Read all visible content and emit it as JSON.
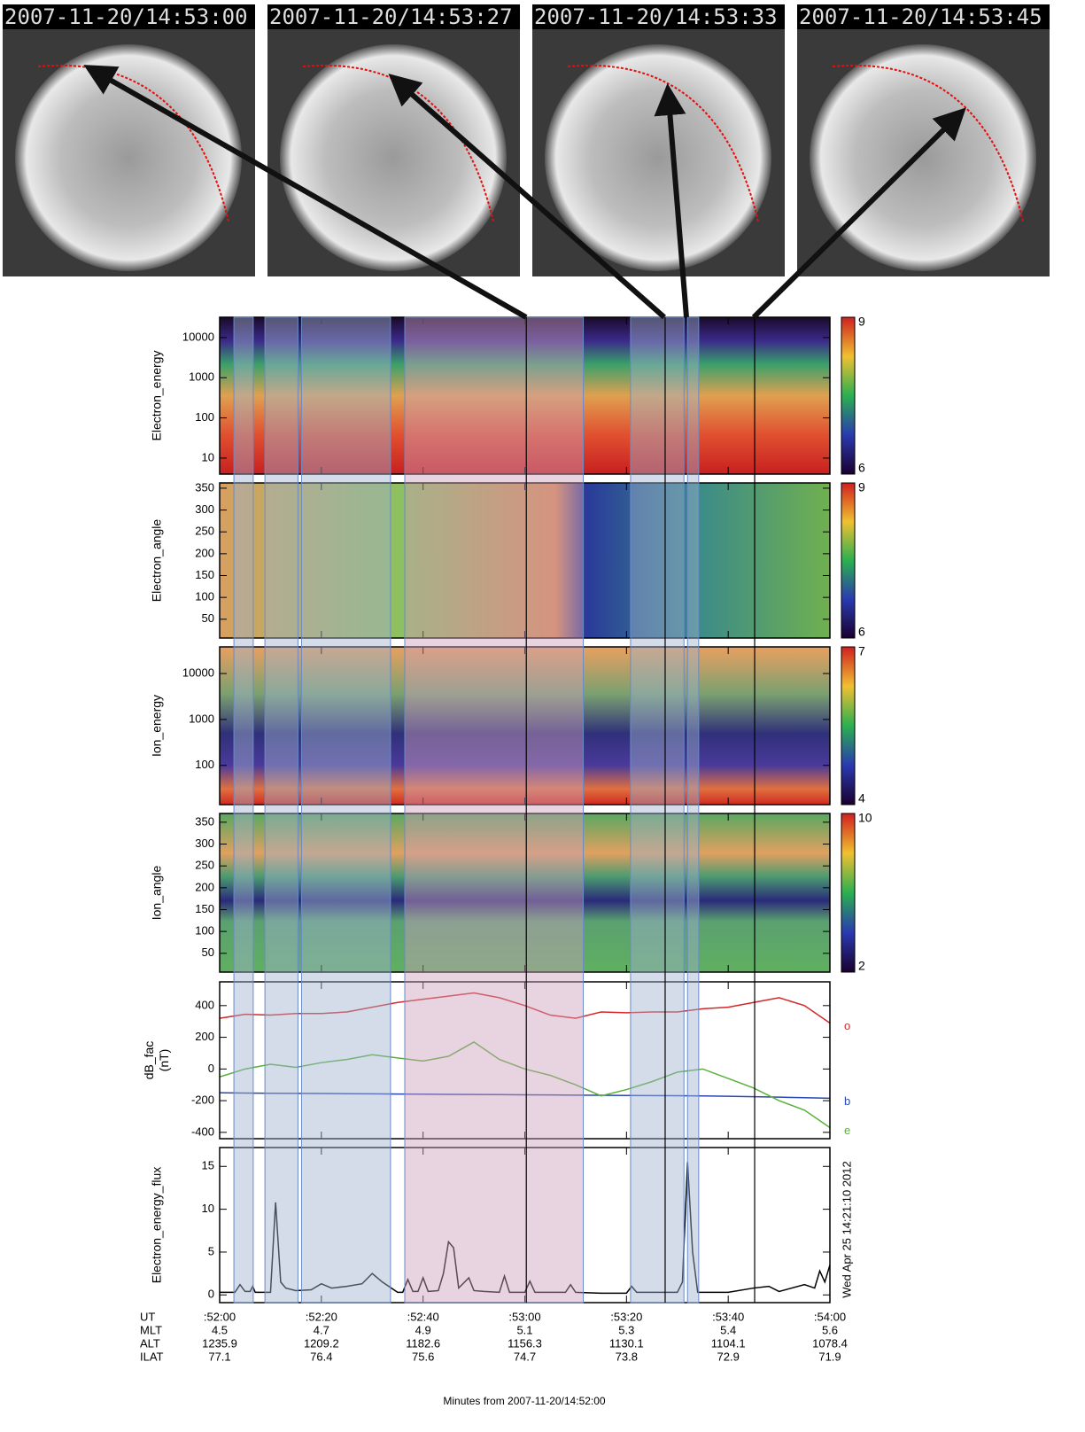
{
  "images": [
    {
      "timestamp": "2007-11-20/14:53:00"
    },
    {
      "timestamp": "2007-11-20/14:53:27"
    },
    {
      "timestamp": "2007-11-20/14:53:33"
    },
    {
      "timestamp": "2007-11-20/14:53:45"
    }
  ],
  "highlights": {
    "blue_color": "#9fb1cf",
    "pink_color": "#c9a0bb",
    "blue": [
      [
        2.8,
        6.6
      ],
      [
        8.9,
        15.4
      ],
      [
        16.1,
        33.6
      ],
      [
        80.8,
        91.3
      ],
      [
        92,
        94.2
      ]
    ],
    "pink": [
      [
        36.4,
        71.5
      ]
    ],
    "lines": [
      60.3,
      87.6,
      105.2
    ]
  },
  "chart_data": [
    {
      "type": "spectrogram",
      "ylabel": [
        "Electron_energy"
      ],
      "log": true,
      "ylim": [
        4,
        32000
      ],
      "yticks": [
        10,
        100,
        1000,
        10000
      ],
      "colorbar": {
        "lim": [
          6,
          9
        ],
        "ticks": [
          6,
          9
        ]
      },
      "palette": "elec_energy"
    },
    {
      "type": "spectrogram",
      "ylabel": [
        "Electron_angle"
      ],
      "log": false,
      "ylim": [
        7,
        362
      ],
      "yticks": [
        50,
        100,
        150,
        200,
        250,
        300,
        350
      ],
      "colorbar": {
        "lim": [
          6,
          9
        ],
        "ticks": [
          6,
          9
        ]
      },
      "palette": "elec_angle"
    },
    {
      "type": "spectrogram",
      "ylabel": [
        "Ion_energy"
      ],
      "log": true,
      "ylim": [
        14,
        38000
      ],
      "yticks": [
        100,
        1000,
        10000
      ],
      "colorbar": {
        "lim": [
          4,
          7
        ],
        "ticks": [
          4,
          7
        ]
      },
      "palette": "ion_energy"
    },
    {
      "type": "spectrogram",
      "ylabel": [
        "Ion_angle"
      ],
      "log": false,
      "ylim": [
        7,
        370
      ],
      "yticks": [
        50,
        100,
        150,
        200,
        250,
        300,
        350
      ],
      "colorbar": {
        "lim": [
          2,
          10
        ],
        "ticks": [
          2,
          10
        ]
      },
      "palette": "ion_angle"
    },
    {
      "type": "line",
      "ylabel": [
        "dB_fac",
        "(nT)"
      ],
      "ylim": [
        -440,
        550
      ],
      "yticks": [
        -400,
        -200,
        0,
        200,
        400
      ],
      "x": [
        0,
        5,
        10,
        15,
        20,
        25,
        30,
        35,
        40,
        45,
        50,
        55,
        60,
        65,
        70,
        75,
        80,
        85,
        90,
        95,
        100,
        105,
        110,
        115,
        120
      ],
      "series": [
        {
          "name": "o",
          "color": "#d62728",
          "values": [
            320,
            345,
            340,
            350,
            350,
            360,
            390,
            420,
            440,
            460,
            480,
            450,
            400,
            340,
            320,
            360,
            355,
            360,
            360,
            380,
            390,
            420,
            450,
            400,
            290
          ]
        },
        {
          "name": "b",
          "color": "#2a48b0",
          "values": [
            -150,
            -152,
            -153,
            -154,
            -155,
            -156,
            -157,
            -158,
            -159,
            -160,
            -161,
            -162,
            -163,
            -164,
            -165,
            -166,
            -167,
            -168,
            -169,
            -170,
            -172,
            -175,
            -178,
            -181,
            -185
          ]
        },
        {
          "name": "e",
          "color": "#5ab03a",
          "values": [
            -50,
            0,
            30,
            10,
            40,
            60,
            90,
            70,
            50,
            80,
            170,
            60,
            0,
            -40,
            -100,
            -170,
            -130,
            -80,
            -20,
            0,
            -60,
            -120,
            -200,
            -260,
            -370
          ]
        }
      ]
    },
    {
      "type": "line",
      "ylabel": [
        "Electron_energy_flux"
      ],
      "ylim": [
        -0.9,
        17.2
      ],
      "yticks": [
        0,
        5,
        10,
        15
      ],
      "side_note": "Wed Apr 25 14:21:10 2012",
      "x": [
        0,
        2,
        3,
        4,
        5,
        6,
        6.5,
        7,
        9,
        10,
        11,
        12,
        13,
        15,
        18,
        20,
        22,
        25,
        28,
        30,
        32,
        35,
        36,
        37,
        38,
        39,
        40,
        41,
        43,
        44,
        45,
        46,
        47,
        49,
        50,
        52,
        55,
        56,
        57,
        60,
        61,
        62,
        65,
        68,
        69,
        70,
        75,
        80,
        81,
        82,
        85,
        90,
        91,
        92,
        93,
        94,
        100,
        105,
        108,
        110,
        115,
        117,
        118,
        119,
        120
      ],
      "series": [
        {
          "color": "#000000",
          "values": [
            0.3,
            0.3,
            0.3,
            1.2,
            0.4,
            0.4,
            1.0,
            0.3,
            0.3,
            0.3,
            10.8,
            1.5,
            0.8,
            0.5,
            0.6,
            1.3,
            0.8,
            1.0,
            1.3,
            2.5,
            1.5,
            0.3,
            0.3,
            1.8,
            0.4,
            0.4,
            2.0,
            0.4,
            0.5,
            2.5,
            6.2,
            5.5,
            0.8,
            2.0,
            0.5,
            0.4,
            0.3,
            2.2,
            0.3,
            0.3,
            1.6,
            0.3,
            0.3,
            0.3,
            1.2,
            0.3,
            0.2,
            0.2,
            1.0,
            0.3,
            0.3,
            0.3,
            1.5,
            15.5,
            5,
            0.3,
            0.3,
            0.8,
            1.0,
            0.4,
            1.2,
            0.8,
            2.8,
            1.5,
            3.5
          ]
        }
      ],
      "xlim": [
        0,
        120
      ],
      "xticks": [
        {
          "value": 0,
          "label": ":52:00"
        },
        {
          "value": 20,
          "label": ":52:20"
        },
        {
          "value": 40,
          "label": ":52:40"
        },
        {
          "value": 60,
          "label": ":53:00"
        },
        {
          "value": 80,
          "label": ":53:20"
        },
        {
          "value": 100,
          "label": ":53:40"
        },
        {
          "value": 120,
          "label": ":54:00"
        }
      ],
      "xlabel": "Minutes from 2007-11-20/14:52:00"
    }
  ],
  "ephemeris": {
    "ut_label": "UT",
    "rows": [
      {
        "label": "MLT",
        "values": [
          4.5,
          4.7,
          4.9,
          5.1,
          5.3,
          5.4,
          5.6
        ]
      },
      {
        "label": "ALT",
        "values": [
          1235.9,
          1209.2,
          1182.6,
          1156.3,
          1130.1,
          1104.1,
          1078.4
        ]
      },
      {
        "label": "ILAT",
        "values": [
          77.1,
          76.4,
          75.6,
          74.7,
          73.8,
          72.9,
          71.9
        ]
      }
    ]
  }
}
